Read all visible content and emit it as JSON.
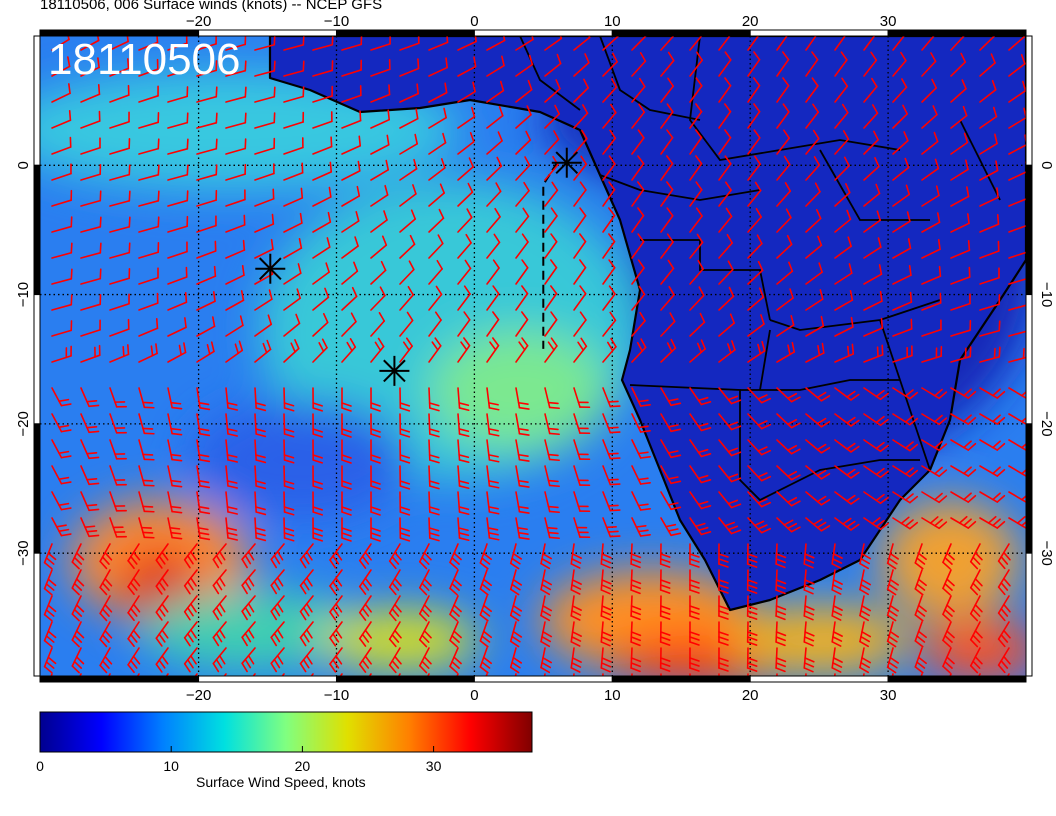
{
  "header": {
    "title": "18110506, 006 Surface winds (knots) -- NCEP GFS"
  },
  "map": {
    "date_overlay": "18110506",
    "projection": "equirectangular",
    "lon_range": [
      -31.5,
      40
    ],
    "lat_range": [
      -39.5,
      10
    ],
    "lon_ticks": [
      {
        "value": -20,
        "label": "−20"
      },
      {
        "value": -10,
        "label": "−10"
      },
      {
        "value": 0,
        "label": "0"
      },
      {
        "value": 10,
        "label": "10"
      },
      {
        "value": 20,
        "label": "20"
      },
      {
        "value": 30,
        "label": "30"
      }
    ],
    "lat_ticks": [
      {
        "value": 0,
        "label": "0"
      },
      {
        "value": -10,
        "label": "−10"
      },
      {
        "value": -20,
        "label": "−20"
      },
      {
        "value": -30,
        "label": "−30"
      }
    ],
    "grid": "dotted",
    "wind_barb_color": "#ff0000",
    "coastline_color": "#000000",
    "markers": [
      {
        "type": "asterisk",
        "lon": -14.8,
        "lat": -8.0
      },
      {
        "type": "asterisk",
        "lon": -5.8,
        "lat": -15.9
      },
      {
        "type": "asterisk",
        "lon": 6.7,
        "lat": 0.2
      }
    ],
    "dashed_track": [
      [
        6.0,
        0.2
      ],
      [
        5.0,
        -1.5
      ],
      [
        5.0,
        -14.2
      ]
    ]
  },
  "colorbar": {
    "label": "Surface Wind Speed, knots",
    "range": [
      0,
      37.5
    ],
    "ticks": [
      {
        "value": 0,
        "label": "0"
      },
      {
        "value": 10,
        "label": "10"
      },
      {
        "value": 20,
        "label": "20"
      },
      {
        "value": 30,
        "label": "30"
      }
    ],
    "colors": [
      "#00008f",
      "#0000ff",
      "#0080ff",
      "#00e0e0",
      "#80ff80",
      "#e0e000",
      "#ff8000",
      "#ff0000",
      "#800000"
    ]
  }
}
